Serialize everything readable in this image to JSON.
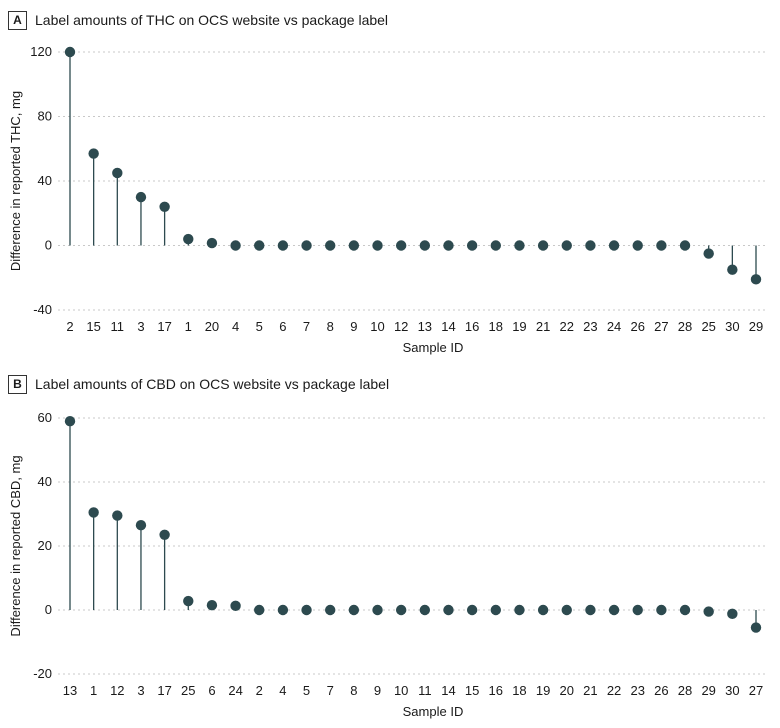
{
  "chart_data": [
    {
      "type": "lollipop",
      "panel_letter": "A",
      "title": "Label amounts of THC on OCS website vs package label",
      "xlabel": "Sample ID",
      "ylabel": "Difference in reported THC, mg",
      "ylim": [
        -40,
        120
      ],
      "yticks": [
        -40,
        0,
        40,
        80,
        120
      ],
      "grid": "horizontal-dashed",
      "categories": [
        "2",
        "15",
        "11",
        "3",
        "17",
        "1",
        "20",
        "4",
        "5",
        "6",
        "7",
        "8",
        "9",
        "10",
        "12",
        "13",
        "14",
        "16",
        "18",
        "19",
        "21",
        "22",
        "23",
        "24",
        "26",
        "27",
        "28",
        "25",
        "30",
        "29"
      ],
      "values": [
        120,
        57,
        45,
        30,
        24,
        4,
        1.5,
        0,
        0,
        0,
        0,
        0,
        0,
        0,
        0,
        0,
        0,
        0,
        0,
        0,
        0,
        0,
        0,
        0,
        0,
        0,
        0,
        -5,
        -15,
        -21
      ],
      "colors": {
        "marker": "#2d4a4f",
        "stem": "#2d4a4f",
        "grid": "#c8c8c8"
      }
    },
    {
      "type": "lollipop",
      "panel_letter": "B",
      "title": "Label amounts of CBD on OCS website vs package label",
      "xlabel": "Sample ID",
      "ylabel": "Difference in reported CBD, mg",
      "ylim": [
        -20,
        60
      ],
      "yticks": [
        -20,
        0,
        20,
        40,
        60
      ],
      "grid": "horizontal-dashed",
      "categories": [
        "13",
        "1",
        "12",
        "3",
        "17",
        "25",
        "6",
        "24",
        "2",
        "4",
        "5",
        "7",
        "8",
        "9",
        "10",
        "11",
        "14",
        "15",
        "16",
        "18",
        "19",
        "20",
        "21",
        "22",
        "23",
        "26",
        "28",
        "29",
        "30",
        "27"
      ],
      "values": [
        59,
        30.5,
        29.5,
        26.5,
        23.5,
        2.8,
        1.5,
        1.3,
        0,
        0,
        0,
        0,
        0,
        0,
        0,
        0,
        0,
        0,
        0,
        0,
        0,
        0,
        0,
        0,
        0,
        0,
        0,
        -0.5,
        -1.2,
        -5.5
      ],
      "colors": {
        "marker": "#2d4a4f",
        "stem": "#2d4a4f",
        "grid": "#c8c8c8"
      }
    }
  ]
}
